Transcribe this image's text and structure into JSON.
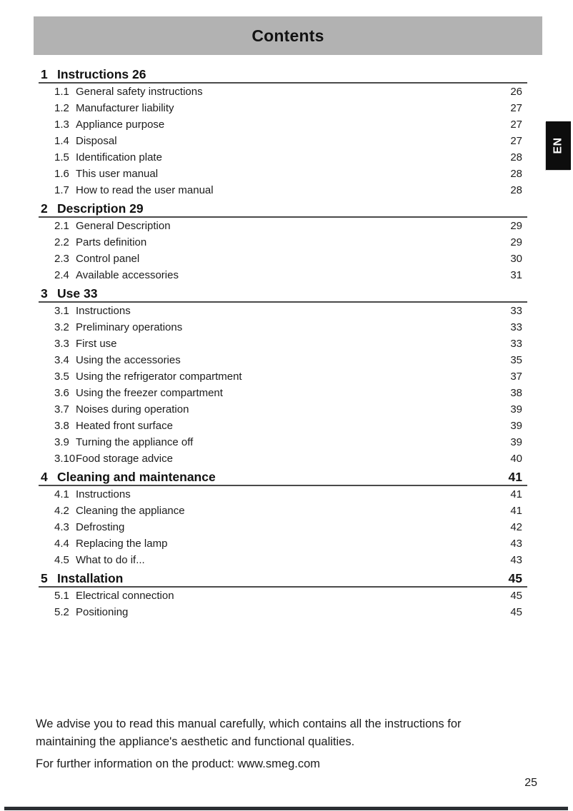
{
  "header": {
    "title": "Contents",
    "bg_color": "#b2b2b2"
  },
  "language_tab": {
    "label": "EN",
    "bg_color": "#0d0d0d",
    "text_color": "#ffffff"
  },
  "toc": {
    "sections": [
      {
        "number": "1",
        "title": "Instructions",
        "page": "26",
        "page_position": "inline",
        "items": [
          {
            "number": "1.1",
            "label": "General safety instructions",
            "page": "26"
          },
          {
            "number": "1.2",
            "label": "Manufacturer liability",
            "page": "27"
          },
          {
            "number": "1.3",
            "label": "Appliance purpose",
            "page": "27"
          },
          {
            "number": "1.4",
            "label": "Disposal",
            "page": "27"
          },
          {
            "number": "1.5",
            "label": "Identification plate",
            "page": "28"
          },
          {
            "number": "1.6",
            "label": "This user manual",
            "page": "28"
          },
          {
            "number": "1.7",
            "label": "How to read the user manual",
            "page": "28"
          }
        ]
      },
      {
        "number": "2",
        "title": "Description",
        "page": "29",
        "page_position": "inline",
        "items": [
          {
            "number": "2.1",
            "label": "General Description",
            "page": "29"
          },
          {
            "number": "2.2",
            "label": "Parts definition",
            "page": "29"
          },
          {
            "number": "2.3",
            "label": "Control panel",
            "page": "30"
          },
          {
            "number": "2.4",
            "label": "Available accessories",
            "page": "31"
          }
        ]
      },
      {
        "number": "3",
        "title": "Use",
        "page": "33",
        "page_position": "inline",
        "items": [
          {
            "number": "3.1",
            "label": "Instructions",
            "page": "33"
          },
          {
            "number": "3.2",
            "label": "Preliminary operations",
            "page": "33"
          },
          {
            "number": "3.3",
            "label": "First use",
            "page": "33"
          },
          {
            "number": "3.4",
            "label": "Using the accessories",
            "page": "35"
          },
          {
            "number": "3.5",
            "label": "Using the refrigerator compartment",
            "page": "37"
          },
          {
            "number": "3.6",
            "label": "Using the freezer compartment",
            "page": "38"
          },
          {
            "number": "3.7",
            "label": "Noises during operation",
            "page": "39"
          },
          {
            "number": "3.8",
            "label": "Heated front surface",
            "page": "39"
          },
          {
            "number": "3.9",
            "label": "Turning the appliance off",
            "page": "39"
          },
          {
            "number": "3.10",
            "label": "Food storage advice",
            "page": "40"
          }
        ]
      },
      {
        "number": "4",
        "title": "Cleaning and maintenance",
        "page": "41",
        "page_position": "right",
        "items": [
          {
            "number": "4.1",
            "label": "Instructions",
            "page": "41"
          },
          {
            "number": "4.2",
            "label": "Cleaning the appliance",
            "page": "41"
          },
          {
            "number": "4.3",
            "label": "Defrosting",
            "page": "42"
          },
          {
            "number": "4.4",
            "label": "Replacing the lamp",
            "page": "43"
          },
          {
            "number": "4.5",
            "label": "What to do if...",
            "page": "43"
          }
        ]
      },
      {
        "number": "5",
        "title": "Installation",
        "page": "45",
        "page_position": "right",
        "items": [
          {
            "number": "5.1",
            "label": "Electrical connection",
            "page": "45"
          },
          {
            "number": "5.2",
            "label": "Positioning",
            "page": "45"
          }
        ]
      }
    ]
  },
  "footer": {
    "note": "We advise you to read this manual carefully, which contains all the instructions for maintaining the appliance's aesthetic and functional qualities.",
    "info": "For further information on the product: www.smeg.com"
  },
  "page_number": "25",
  "bottom_bar_color": "#2b2e33"
}
